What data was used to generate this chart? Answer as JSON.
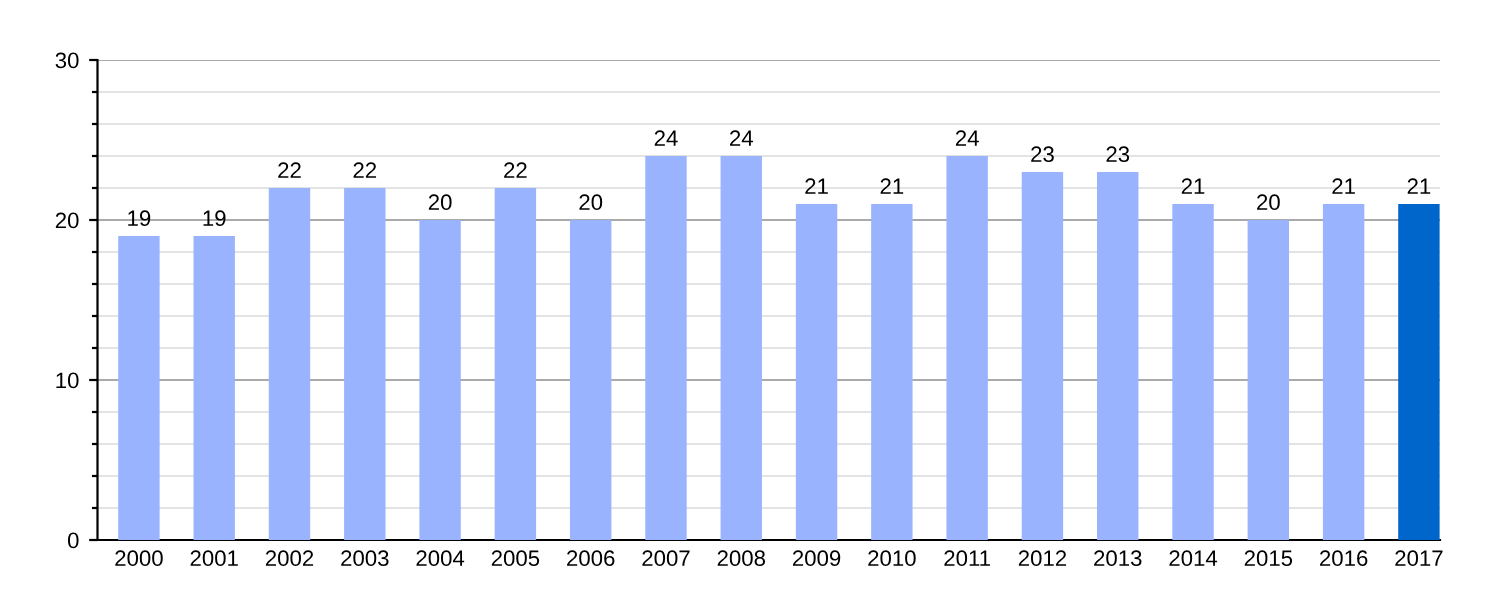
{
  "chart_data": {
    "type": "bar",
    "categories": [
      "2000",
      "2001",
      "2002",
      "2003",
      "2004",
      "2005",
      "2006",
      "2007",
      "2008",
      "2009",
      "2010",
      "2011",
      "2012",
      "2013",
      "2014",
      "2015",
      "2016",
      "2017"
    ],
    "values": [
      19,
      19,
      22,
      22,
      20,
      22,
      20,
      24,
      24,
      21,
      21,
      24,
      23,
      23,
      21,
      20,
      21,
      21
    ],
    "colors": [
      "#99b3ff",
      "#99b3ff",
      "#99b3ff",
      "#99b3ff",
      "#99b3ff",
      "#99b3ff",
      "#99b3ff",
      "#99b3ff",
      "#99b3ff",
      "#99b3ff",
      "#99b3ff",
      "#99b3ff",
      "#99b3ff",
      "#99b3ff",
      "#99b3ff",
      "#99b3ff",
      "#99b3ff",
      "#0066cc"
    ],
    "ylim": [
      0,
      30
    ],
    "yticks": [
      0,
      {
        "value": 2,
        "label": null
      },
      {
        "value": 4,
        "label": null
      },
      {
        "value": 6,
        "label": null
      },
      {
        "value": 8,
        "label": null
      },
      10,
      {
        "value": 12,
        "label": null
      },
      {
        "value": 14,
        "label": null
      },
      {
        "value": 16,
        "label": null
      },
      {
        "value": 18,
        "label": null
      },
      20,
      {
        "value": 22,
        "label": null
      },
      {
        "value": 24,
        "label": null
      },
      {
        "value": 26,
        "label": null
      },
      {
        "value": 28,
        "label": null
      },
      30
    ],
    "grid": true,
    "data_labels": true
  }
}
